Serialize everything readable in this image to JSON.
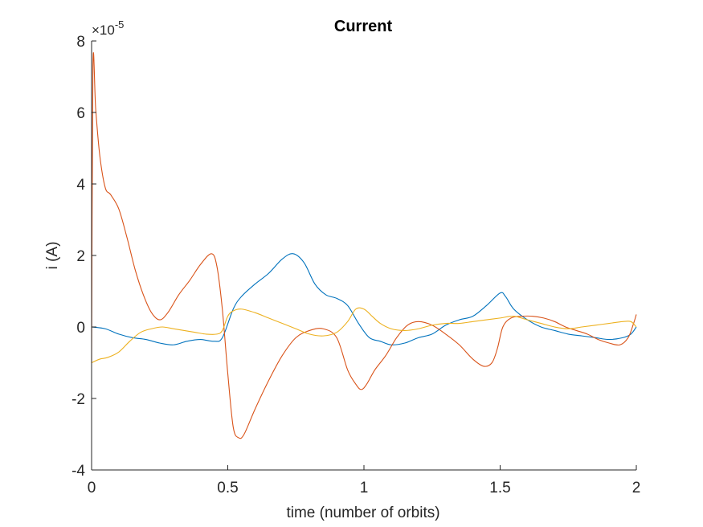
{
  "chart_data": {
    "type": "line",
    "title": "Current",
    "xlabel": "time (number of orbits)",
    "ylabel": "i (A)",
    "y_exponent_label": "×10",
    "y_exponent_power": "-5",
    "xlim": [
      0,
      2
    ],
    "ylim": [
      -4,
      8
    ],
    "xticks": [
      0,
      0.5,
      1,
      1.5,
      2
    ],
    "xtick_labels": [
      "0",
      "0.5",
      "1",
      "1.5",
      "2"
    ],
    "yticks": [
      -4,
      -2,
      0,
      2,
      4,
      6,
      8
    ],
    "ytick_labels": [
      "-4",
      "-2",
      "0",
      "2",
      "4",
      "6",
      "8"
    ],
    "grid": false,
    "legend": "none",
    "series": [
      {
        "color": "#0072BD",
        "x": [
          0,
          0.05,
          0.1,
          0.15,
          0.2,
          0.25,
          0.3,
          0.35,
          0.4,
          0.45,
          0.48,
          0.52,
          0.55,
          0.6,
          0.65,
          0.7,
          0.74,
          0.78,
          0.82,
          0.86,
          0.9,
          0.94,
          0.98,
          1.02,
          1.06,
          1.1,
          1.15,
          1.2,
          1.25,
          1.3,
          1.35,
          1.4,
          1.45,
          1.5,
          1.52,
          1.55,
          1.6,
          1.65,
          1.7,
          1.75,
          1.8,
          1.85,
          1.9,
          1.95,
          1.98,
          2.0
        ],
        "y": [
          0.0,
          -0.05,
          -0.2,
          -0.3,
          -0.35,
          -0.45,
          -0.5,
          -0.4,
          -0.35,
          -0.4,
          -0.3,
          0.5,
          0.85,
          1.2,
          1.5,
          1.9,
          2.05,
          1.8,
          1.2,
          0.9,
          0.8,
          0.6,
          0.1,
          -0.3,
          -0.4,
          -0.5,
          -0.45,
          -0.3,
          -0.2,
          0.05,
          0.2,
          0.3,
          0.6,
          0.95,
          0.85,
          0.5,
          0.2,
          0.0,
          -0.1,
          -0.2,
          -0.25,
          -0.3,
          -0.35,
          -0.3,
          -0.2,
          0.0
        ]
      },
      {
        "color": "#D95319",
        "x": [
          0,
          0.005,
          0.015,
          0.03,
          0.05,
          0.07,
          0.1,
          0.13,
          0.16,
          0.19,
          0.22,
          0.25,
          0.28,
          0.32,
          0.36,
          0.4,
          0.44,
          0.46,
          0.48,
          0.5,
          0.52,
          0.54,
          0.56,
          0.6,
          0.65,
          0.7,
          0.75,
          0.8,
          0.85,
          0.9,
          0.94,
          0.97,
          0.99,
          1.01,
          1.04,
          1.08,
          1.12,
          1.16,
          1.2,
          1.25,
          1.3,
          1.35,
          1.4,
          1.44,
          1.47,
          1.49,
          1.51,
          1.54,
          1.58,
          1.62,
          1.66,
          1.7,
          1.74,
          1.78,
          1.82,
          1.86,
          1.9,
          1.94,
          1.97,
          1.99,
          2.0
        ],
        "y": [
          -1.0,
          7.3,
          6.1,
          4.8,
          3.9,
          3.7,
          3.3,
          2.5,
          1.6,
          0.9,
          0.4,
          0.2,
          0.4,
          0.9,
          1.3,
          1.75,
          2.05,
          1.7,
          0.5,
          -1.3,
          -2.8,
          -3.1,
          -3.0,
          -2.3,
          -1.5,
          -0.8,
          -0.3,
          -0.1,
          -0.05,
          -0.3,
          -1.2,
          -1.6,
          -1.75,
          -1.6,
          -1.2,
          -0.8,
          -0.3,
          0.05,
          0.15,
          0.05,
          -0.2,
          -0.5,
          -0.9,
          -1.1,
          -1.0,
          -0.6,
          0.0,
          0.25,
          0.3,
          0.3,
          0.25,
          0.15,
          0.0,
          -0.1,
          -0.2,
          -0.35,
          -0.45,
          -0.5,
          -0.3,
          0.1,
          0.35
        ]
      },
      {
        "color": "#EDB120",
        "x": [
          0,
          0.03,
          0.06,
          0.1,
          0.14,
          0.18,
          0.22,
          0.26,
          0.3,
          0.34,
          0.38,
          0.42,
          0.46,
          0.48,
          0.5,
          0.52,
          0.55,
          0.6,
          0.65,
          0.7,
          0.75,
          0.8,
          0.85,
          0.9,
          0.94,
          0.97,
          1.0,
          1.03,
          1.06,
          1.1,
          1.15,
          1.2,
          1.25,
          1.3,
          1.35,
          1.4,
          1.45,
          1.5,
          1.55,
          1.6,
          1.65,
          1.7,
          1.75,
          1.8,
          1.85,
          1.9,
          1.95,
          1.98,
          2.0
        ],
        "y": [
          -1.0,
          -0.9,
          -0.85,
          -0.7,
          -0.4,
          -0.15,
          -0.05,
          0.0,
          -0.05,
          -0.1,
          -0.15,
          -0.2,
          -0.2,
          -0.1,
          0.3,
          0.45,
          0.5,
          0.4,
          0.25,
          0.1,
          -0.05,
          -0.2,
          -0.25,
          -0.15,
          0.15,
          0.5,
          0.5,
          0.3,
          0.1,
          -0.05,
          -0.1,
          -0.05,
          0.05,
          0.1,
          0.1,
          0.15,
          0.2,
          0.25,
          0.3,
          0.2,
          0.1,
          0.0,
          -0.05,
          0.0,
          0.05,
          0.1,
          0.15,
          0.15,
          0.0
        ]
      }
    ]
  }
}
